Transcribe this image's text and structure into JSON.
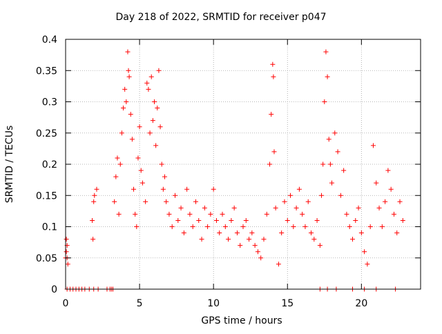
{
  "chart_data": {
    "type": "scatter",
    "title": "Day 218 of 2022, SRMTID for receiver p047",
    "xlabel": "GPS time / hours",
    "ylabel": "SRMTID / TECUs",
    "xlim": [
      0,
      24
    ],
    "ylim": [
      0,
      0.4
    ],
    "xticks": [
      0,
      5,
      10,
      15,
      20
    ],
    "yticks": [
      0,
      0.05,
      0.1,
      0.15,
      0.2,
      0.25,
      0.3,
      0.35,
      0.4
    ],
    "xtick_labels": [
      "0",
      "5",
      "10",
      "15",
      "20"
    ],
    "ytick_labels": [
      "0",
      "0.05",
      "0.1",
      "0.15",
      "0.2",
      "0.25",
      "0.3",
      "0.35",
      "0.4"
    ],
    "grid": true,
    "marker": "+",
    "color": "#ff0000",
    "series": [
      {
        "name": "SRMTID p047",
        "points": [
          [
            0.0,
            0.05
          ],
          [
            0.05,
            0.08
          ],
          [
            0.1,
            0.07
          ],
          [
            0.15,
            0.04
          ],
          [
            0.05,
            0.06
          ],
          [
            0.1,
            0.05
          ],
          [
            0.1,
            0.0
          ],
          [
            0.3,
            0.0
          ],
          [
            0.5,
            0.0
          ],
          [
            0.7,
            0.0
          ],
          [
            0.9,
            0.0
          ],
          [
            1.1,
            0.0
          ],
          [
            1.3,
            0.0
          ],
          [
            1.6,
            0.0
          ],
          [
            1.9,
            0.0
          ],
          [
            2.2,
            0.0
          ],
          [
            1.8,
            0.11
          ],
          [
            1.85,
            0.08
          ],
          [
            1.9,
            0.14
          ],
          [
            1.95,
            0.15
          ],
          [
            2.1,
            0.16
          ],
          [
            2.8,
            0.0
          ],
          [
            3.0,
            0.0
          ],
          [
            3.1,
            0.0
          ],
          [
            3.2,
            0.0
          ],
          [
            3.3,
            0.14
          ],
          [
            3.4,
            0.18
          ],
          [
            3.5,
            0.21
          ],
          [
            3.6,
            0.12
          ],
          [
            3.7,
            0.2
          ],
          [
            3.8,
            0.25
          ],
          [
            3.9,
            0.29
          ],
          [
            4.0,
            0.32
          ],
          [
            4.1,
            0.3
          ],
          [
            4.2,
            0.38
          ],
          [
            4.25,
            0.35
          ],
          [
            4.3,
            0.34
          ],
          [
            4.4,
            0.28
          ],
          [
            4.5,
            0.24
          ],
          [
            4.6,
            0.16
          ],
          [
            4.7,
            0.12
          ],
          [
            4.8,
            0.1
          ],
          [
            4.9,
            0.21
          ],
          [
            5.0,
            0.26
          ],
          [
            5.1,
            0.19
          ],
          [
            5.2,
            0.17
          ],
          [
            5.4,
            0.14
          ],
          [
            5.5,
            0.33
          ],
          [
            5.6,
            0.32
          ],
          [
            5.7,
            0.25
          ],
          [
            5.8,
            0.34
          ],
          [
            5.9,
            0.27
          ],
          [
            6.0,
            0.3
          ],
          [
            6.1,
            0.23
          ],
          [
            6.2,
            0.29
          ],
          [
            6.3,
            0.35
          ],
          [
            6.4,
            0.26
          ],
          [
            6.5,
            0.2
          ],
          [
            6.6,
            0.16
          ],
          [
            6.7,
            0.18
          ],
          [
            6.8,
            0.14
          ],
          [
            7.0,
            0.12
          ],
          [
            7.2,
            0.1
          ],
          [
            7.4,
            0.15
          ],
          [
            7.6,
            0.11
          ],
          [
            7.8,
            0.13
          ],
          [
            8.0,
            0.09
          ],
          [
            8.2,
            0.16
          ],
          [
            8.4,
            0.12
          ],
          [
            8.6,
            0.1
          ],
          [
            8.8,
            0.14
          ],
          [
            9.0,
            0.11
          ],
          [
            9.2,
            0.08
          ],
          [
            9.4,
            0.13
          ],
          [
            9.6,
            0.1
          ],
          [
            9.8,
            0.12
          ],
          [
            10.0,
            0.16
          ],
          [
            10.2,
            0.11
          ],
          [
            10.4,
            0.09
          ],
          [
            10.6,
            0.12
          ],
          [
            10.8,
            0.1
          ],
          [
            11.0,
            0.08
          ],
          [
            11.2,
            0.11
          ],
          [
            11.4,
            0.13
          ],
          [
            11.6,
            0.09
          ],
          [
            11.8,
            0.07
          ],
          [
            12.0,
            0.1
          ],
          [
            12.2,
            0.11
          ],
          [
            12.4,
            0.08
          ],
          [
            12.6,
            0.09
          ],
          [
            12.8,
            0.07
          ],
          [
            13.0,
            0.06
          ],
          [
            13.2,
            0.05
          ],
          [
            13.4,
            0.08
          ],
          [
            13.6,
            0.12
          ],
          [
            13.8,
            0.2
          ],
          [
            13.9,
            0.28
          ],
          [
            14.0,
            0.36
          ],
          [
            14.05,
            0.34
          ],
          [
            14.1,
            0.22
          ],
          [
            14.2,
            0.13
          ],
          [
            14.4,
            0.04
          ],
          [
            14.6,
            0.09
          ],
          [
            14.8,
            0.14
          ],
          [
            15.0,
            0.11
          ],
          [
            15.2,
            0.15
          ],
          [
            15.4,
            0.1
          ],
          [
            15.6,
            0.13
          ],
          [
            15.8,
            0.16
          ],
          [
            16.0,
            0.12
          ],
          [
            16.2,
            0.1
          ],
          [
            16.4,
            0.14
          ],
          [
            16.6,
            0.09
          ],
          [
            16.8,
            0.08
          ],
          [
            17.0,
            0.11
          ],
          [
            17.2,
            0.07
          ],
          [
            17.3,
            0.15
          ],
          [
            17.4,
            0.2
          ],
          [
            17.5,
            0.3
          ],
          [
            17.6,
            0.38
          ],
          [
            17.7,
            0.34
          ],
          [
            17.8,
            0.24
          ],
          [
            17.9,
            0.2
          ],
          [
            18.0,
            0.17
          ],
          [
            18.2,
            0.25
          ],
          [
            18.4,
            0.22
          ],
          [
            18.6,
            0.15
          ],
          [
            18.8,
            0.19
          ],
          [
            19.0,
            0.12
          ],
          [
            19.2,
            0.1
          ],
          [
            19.4,
            0.08
          ],
          [
            19.6,
            0.11
          ],
          [
            19.8,
            0.13
          ],
          [
            20.0,
            0.09
          ],
          [
            20.2,
            0.06
          ],
          [
            20.4,
            0.04
          ],
          [
            20.6,
            0.1
          ],
          [
            20.8,
            0.23
          ],
          [
            21.0,
            0.17
          ],
          [
            21.2,
            0.13
          ],
          [
            21.4,
            0.1
          ],
          [
            21.6,
            0.14
          ],
          [
            21.8,
            0.19
          ],
          [
            22.0,
            0.16
          ],
          [
            22.2,
            0.12
          ],
          [
            22.4,
            0.09
          ],
          [
            22.6,
            0.14
          ],
          [
            22.8,
            0.11
          ],
          [
            17.2,
            0.0
          ],
          [
            17.7,
            0.0
          ],
          [
            18.3,
            0.0
          ],
          [
            19.4,
            0.0
          ],
          [
            20.2,
            0.0
          ],
          [
            21.0,
            0.0
          ],
          [
            22.3,
            0.0
          ]
        ]
      }
    ]
  }
}
